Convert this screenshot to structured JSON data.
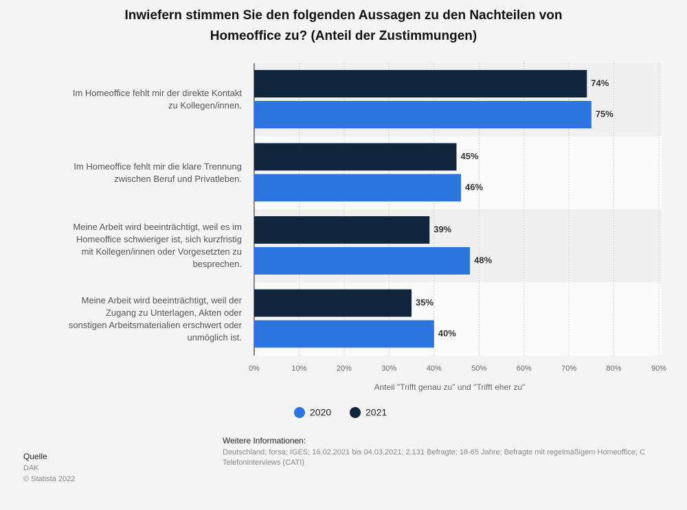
{
  "chart_data": {
    "type": "bar",
    "orientation": "horizontal",
    "title": "Inwiefern stimmen Sie den folgenden Aussagen zu den Nachteilen von\nHomeoffice zu? (Anteil der Zustimmungen)",
    "categories": [
      "Im Homeoffice fehlt mir der direkte Kontakt\nzu Kollegen/innen.",
      "Im Homeoffice fehlt mir die klare Trennung\nzwischen Beruf und Privatleben.",
      "Meine Arbeit wird beeinträchtigt, weil es im\nHomeoffice schwieriger ist, sich kurzfristig\nmit Kollegen/innen oder Vorgesetzten zu\nbesprechen.",
      "Meine Arbeit wird beeinträchtigt, weil der\nZugang zu Unterlagen, Akten oder\nsonstigen Arbeitsmaterialien erschwert oder\nunmöglich ist."
    ],
    "series": [
      {
        "name": "2020",
        "color": "#2b76de",
        "values": [
          75,
          46,
          48,
          40
        ],
        "value_labels": [
          "75%",
          "46%",
          "48%",
          "40%"
        ]
      },
      {
        "name": "2021",
        "color": "#10263d",
        "values": [
          74,
          45,
          39,
          35
        ],
        "value_labels": [
          "74%",
          "45%",
          "39%",
          "35%"
        ]
      }
    ],
    "xlabel": "Anteil \"Trifft genau zu\" und \"Trifft eher zu\"",
    "xlim": [
      0,
      90
    ],
    "xticks": [
      {
        "value": 0,
        "label": "0%"
      },
      {
        "value": 10,
        "label": "10%"
      },
      {
        "value": 20,
        "label": "20%"
      },
      {
        "value": 30,
        "label": "30%"
      },
      {
        "value": 40,
        "label": "40%"
      },
      {
        "value": 50,
        "label": "50%"
      },
      {
        "value": 60,
        "label": "60%"
      },
      {
        "value": 70,
        "label": "70%"
      },
      {
        "value": 80,
        "label": "80%"
      },
      {
        "value": 90,
        "label": "90%"
      }
    ],
    "grid": true,
    "legend": "bottom"
  },
  "footer": {
    "source_heading": "Quelle",
    "source": "DAK",
    "copyright": "© Statista 2022",
    "info_heading": "Weitere Informationen:",
    "info": "Deutschland; forsa; IGES; 16.02.2021 bis 04.03.2021; 2.131 Befragte; 18-65 Jahre; Befragte mit regelmäßigem Homeoffice; C\nTelefoninterviews (CATI)"
  }
}
